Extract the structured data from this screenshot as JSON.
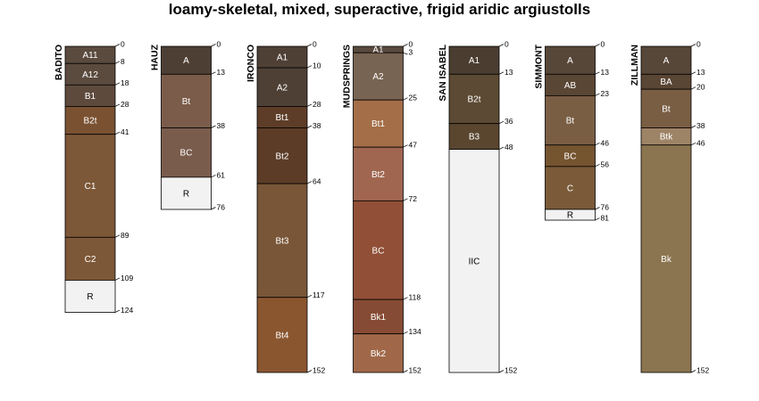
{
  "chart_data": {
    "type": "soil-profile-sketch",
    "title": "loamy-skeletal, mixed, superactive, frigid aridic argiustolls",
    "depth_unit": "cm",
    "max_depth": 152,
    "profiles": [
      {
        "name": "BADITO",
        "horizons": [
          {
            "name": "A11",
            "top": 0,
            "bottom": 8,
            "color": "#5B4B3E"
          },
          {
            "name": "A12",
            "top": 8,
            "bottom": 18,
            "color": "#5B4B3E"
          },
          {
            "name": "B1",
            "top": 18,
            "bottom": 28,
            "color": "#5E4A3C"
          },
          {
            "name": "B2t",
            "top": 28,
            "bottom": 41,
            "color": "#7A5232"
          },
          {
            "name": "C1",
            "top": 41,
            "bottom": 89,
            "color": "#7D5838"
          },
          {
            "name": "C2",
            "top": 89,
            "bottom": 109,
            "color": "#7D5838"
          },
          {
            "name": "R",
            "top": 109,
            "bottom": 124,
            "color": "#F2F2F2"
          }
        ]
      },
      {
        "name": "HAUZ",
        "horizons": [
          {
            "name": "A",
            "top": 0,
            "bottom": 13,
            "color": "#4E3F34"
          },
          {
            "name": "Bt",
            "top": 13,
            "bottom": 38,
            "color": "#7B5C4A"
          },
          {
            "name": "BC",
            "top": 38,
            "bottom": 61,
            "color": "#7A5C4C"
          },
          {
            "name": "R",
            "top": 61,
            "bottom": 76,
            "color": "#F2F2F2"
          }
        ]
      },
      {
        "name": "IRONCO",
        "horizons": [
          {
            "name": "A1",
            "top": 0,
            "bottom": 10,
            "color": "#4F4036"
          },
          {
            "name": "A2",
            "top": 10,
            "bottom": 28,
            "color": "#4F4036"
          },
          {
            "name": "Bt1",
            "top": 28,
            "bottom": 38,
            "color": "#5E3D28"
          },
          {
            "name": "Bt2",
            "top": 38,
            "bottom": 64,
            "color": "#5C3C27"
          },
          {
            "name": "Bt3",
            "top": 64,
            "bottom": 117,
            "color": "#7A5638"
          },
          {
            "name": "Bt4",
            "top": 117,
            "bottom": 152,
            "color": "#8A5630"
          }
        ]
      },
      {
        "name": "MUDSPRINGS",
        "horizons": [
          {
            "name": "A1",
            "top": 0,
            "bottom": 3,
            "color": "#5A4A3E"
          },
          {
            "name": "A2",
            "top": 3,
            "bottom": 25,
            "color": "#786452"
          },
          {
            "name": "Bt1",
            "top": 25,
            "bottom": 47,
            "color": "#A46E48"
          },
          {
            "name": "Bt2",
            "top": 47,
            "bottom": 72,
            "color": "#A06650"
          },
          {
            "name": "BC",
            "top": 72,
            "bottom": 118,
            "color": "#904F36"
          },
          {
            "name": "Bk1",
            "top": 118,
            "bottom": 134,
            "color": "#864B34"
          },
          {
            "name": "Bk2",
            "top": 134,
            "bottom": 152,
            "color": "#A06848"
          }
        ]
      },
      {
        "name": "SAN ISABEL",
        "horizons": [
          {
            "name": "A1",
            "top": 0,
            "bottom": 13,
            "color": "#4B3D30"
          },
          {
            "name": "B2t",
            "top": 13,
            "bottom": 36,
            "color": "#5C4A34"
          },
          {
            "name": "B3",
            "top": 36,
            "bottom": 48,
            "color": "#5A462F"
          },
          {
            "name": "IIC",
            "top": 48,
            "bottom": 152,
            "color": "#F2F2F2"
          }
        ]
      },
      {
        "name": "SIMMONT",
        "horizons": [
          {
            "name": "A",
            "top": 0,
            "bottom": 13,
            "color": "#574738"
          },
          {
            "name": "AB",
            "top": 13,
            "bottom": 23,
            "color": "#5A4634"
          },
          {
            "name": "Bt",
            "top": 23,
            "bottom": 46,
            "color": "#7A5E44"
          },
          {
            "name": "BC",
            "top": 46,
            "bottom": 56,
            "color": "#755430"
          },
          {
            "name": "C",
            "top": 56,
            "bottom": 76,
            "color": "#7A5A38"
          },
          {
            "name": "R",
            "top": 76,
            "bottom": 81,
            "color": "#F2F2F2"
          }
        ]
      },
      {
        "name": "ZILLMAN",
        "horizons": [
          {
            "name": "A",
            "top": 0,
            "bottom": 13,
            "color": "#574738"
          },
          {
            "name": "BA",
            "top": 13,
            "bottom": 20,
            "color": "#5A4634"
          },
          {
            "name": "Bt",
            "top": 20,
            "bottom": 38,
            "color": "#7A5E44"
          },
          {
            "name": "Btk",
            "top": 38,
            "bottom": 46,
            "color": "#9E8466"
          },
          {
            "name": "Bk",
            "top": 46,
            "bottom": 152,
            "color": "#8B7550"
          }
        ]
      }
    ]
  }
}
